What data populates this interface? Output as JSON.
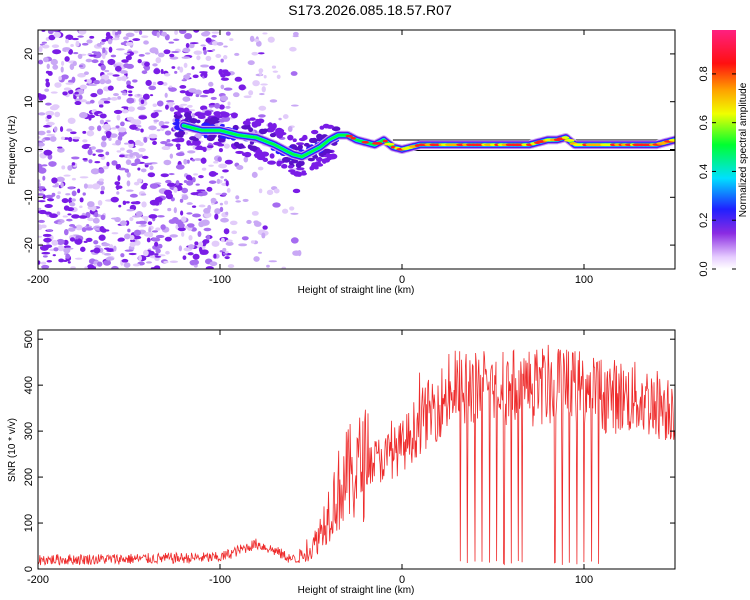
{
  "title": "S173.2026.085.18.57.R07",
  "colors": {
    "snr_line": "#ee2b2b",
    "scatter": "#7a1ce6",
    "frame": "#000000"
  },
  "colorbar": {
    "label": "Normalized spectral amplitude",
    "ticks": [
      "0.0",
      "0.2",
      "0.4",
      "0.6",
      "0.8"
    ],
    "range": [
      0,
      0.98
    ],
    "colormap": "rainbow (violet → blue → cyan → green → yellow → orange → red → pink)"
  },
  "chart_data": [
    {
      "type": "heatmap",
      "title": "S173.2026.085.18.57.R07",
      "xlabel": "Height of straight line (km)",
      "ylabel": "Frequency (Hz)",
      "xlim": [
        -200,
        150
      ],
      "ylim": [
        -25,
        25
      ],
      "xticks": [
        "-200",
        "-100",
        "0",
        "100"
      ],
      "yticks": [
        "20",
        "10",
        "0",
        "-10",
        "-20"
      ],
      "grid": false,
      "colorbar": "right",
      "ridge": {
        "description": "dominant frequency track",
        "x": [
          -120,
          -110,
          -100,
          -90,
          -80,
          -70,
          -60,
          -55,
          -50,
          -45,
          -40,
          -35,
          -30,
          -25,
          -20,
          -15,
          -10,
          -5,
          0,
          10,
          20,
          30,
          40,
          50,
          60,
          70,
          80,
          85,
          90,
          95,
          100,
          110,
          120,
          130,
          140,
          150
        ],
        "y": [
          5,
          4,
          4,
          3,
          2.5,
          1,
          -1,
          -1.5,
          -0.5,
          0.5,
          2,
          3,
          3,
          2,
          1.5,
          1,
          2,
          0.5,
          0,
          1,
          1,
          1,
          1,
          1,
          1,
          1,
          2,
          2,
          2.5,
          1,
          1,
          1,
          1,
          1,
          1,
          2
        ]
      }
    },
    {
      "type": "line",
      "xlabel": "Height of straight line (km)",
      "ylabel": "SNR (10 * v/v)",
      "xlim": [
        -200,
        150
      ],
      "ylim": [
        0,
        520
      ],
      "xticks": [
        "-200",
        "-100",
        "0",
        "100"
      ],
      "yticks": [
        "500",
        "400",
        "300",
        "200",
        "100",
        "0"
      ],
      "grid": false,
      "envelope": {
        "x": [
          -200,
          -150,
          -100,
          -90,
          -80,
          -70,
          -60,
          -50,
          -45,
          -40,
          -35,
          -30,
          -20,
          -10,
          0,
          10,
          20,
          30,
          40,
          50,
          60,
          70,
          80,
          90,
          100,
          110,
          120,
          130,
          140,
          150
        ],
        "y": [
          20,
          22,
          25,
          40,
          55,
          40,
          20,
          40,
          80,
          130,
          170,
          200,
          230,
          240,
          265,
          320,
          360,
          390,
          400,
          400,
          395,
          395,
          400,
          395,
          390,
          380,
          375,
          370,
          360,
          350
        ]
      },
      "dropouts_x": [
        32,
        36,
        40,
        44,
        48,
        52,
        56,
        60,
        64,
        66,
        84,
        88,
        92,
        96,
        100,
        104,
        108
      ]
    }
  ]
}
